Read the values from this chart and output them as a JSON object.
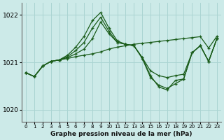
{
  "background_color": "#cceae8",
  "grid_color": "#aad4d2",
  "line_color": "#1a5c1a",
  "xlabel": "Graphe pression niveau de la mer (hPa)",
  "xlim": [
    -0.5,
    23.5
  ],
  "ylim": [
    1019.75,
    1022.25
  ],
  "yticks": [
    1020,
    1021,
    1022
  ],
  "xticks": [
    0,
    1,
    2,
    3,
    4,
    5,
    6,
    7,
    8,
    9,
    10,
    11,
    12,
    13,
    14,
    15,
    16,
    17,
    18,
    19,
    20,
    21,
    22,
    23
  ],
  "series": [
    [
      1020.78,
      1020.7,
      1020.92,
      1021.02,
      1021.05,
      1021.08,
      1021.12,
      1021.15,
      1021.18,
      1021.22,
      1021.28,
      1021.32,
      1021.35,
      1021.38,
      1021.4,
      1021.42,
      1021.44,
      1021.46,
      1021.48,
      1021.5,
      1021.52,
      1021.54,
      1021.3,
      1021.55
    ],
    [
      1020.78,
      1020.7,
      1020.92,
      1021.02,
      1021.05,
      1021.1,
      1021.18,
      1021.28,
      1021.5,
      1021.85,
      1021.6,
      1021.42,
      1021.38,
      1021.35,
      1021.1,
      1020.82,
      1020.72,
      1020.68,
      1020.72,
      1020.75,
      1021.2,
      1021.35,
      1021.02,
      1021.5
    ],
    [
      1020.78,
      1020.7,
      1020.92,
      1021.02,
      1021.05,
      1021.12,
      1021.25,
      1021.42,
      1021.72,
      1021.95,
      1021.65,
      1021.42,
      1021.38,
      1021.35,
      1021.1,
      1020.72,
      1020.48,
      1020.42,
      1020.62,
      1020.65,
      1021.2,
      1021.35,
      1021.02,
      1021.5
    ],
    [
      1020.78,
      1020.7,
      1020.92,
      1021.02,
      1021.05,
      1021.15,
      1021.32,
      1021.55,
      1021.88,
      1022.05,
      1021.72,
      1021.45,
      1021.38,
      1021.35,
      1021.08,
      1020.68,
      1020.52,
      1020.45,
      1020.55,
      1020.65,
      1021.2,
      1021.35,
      1021.02,
      1021.5
    ]
  ]
}
